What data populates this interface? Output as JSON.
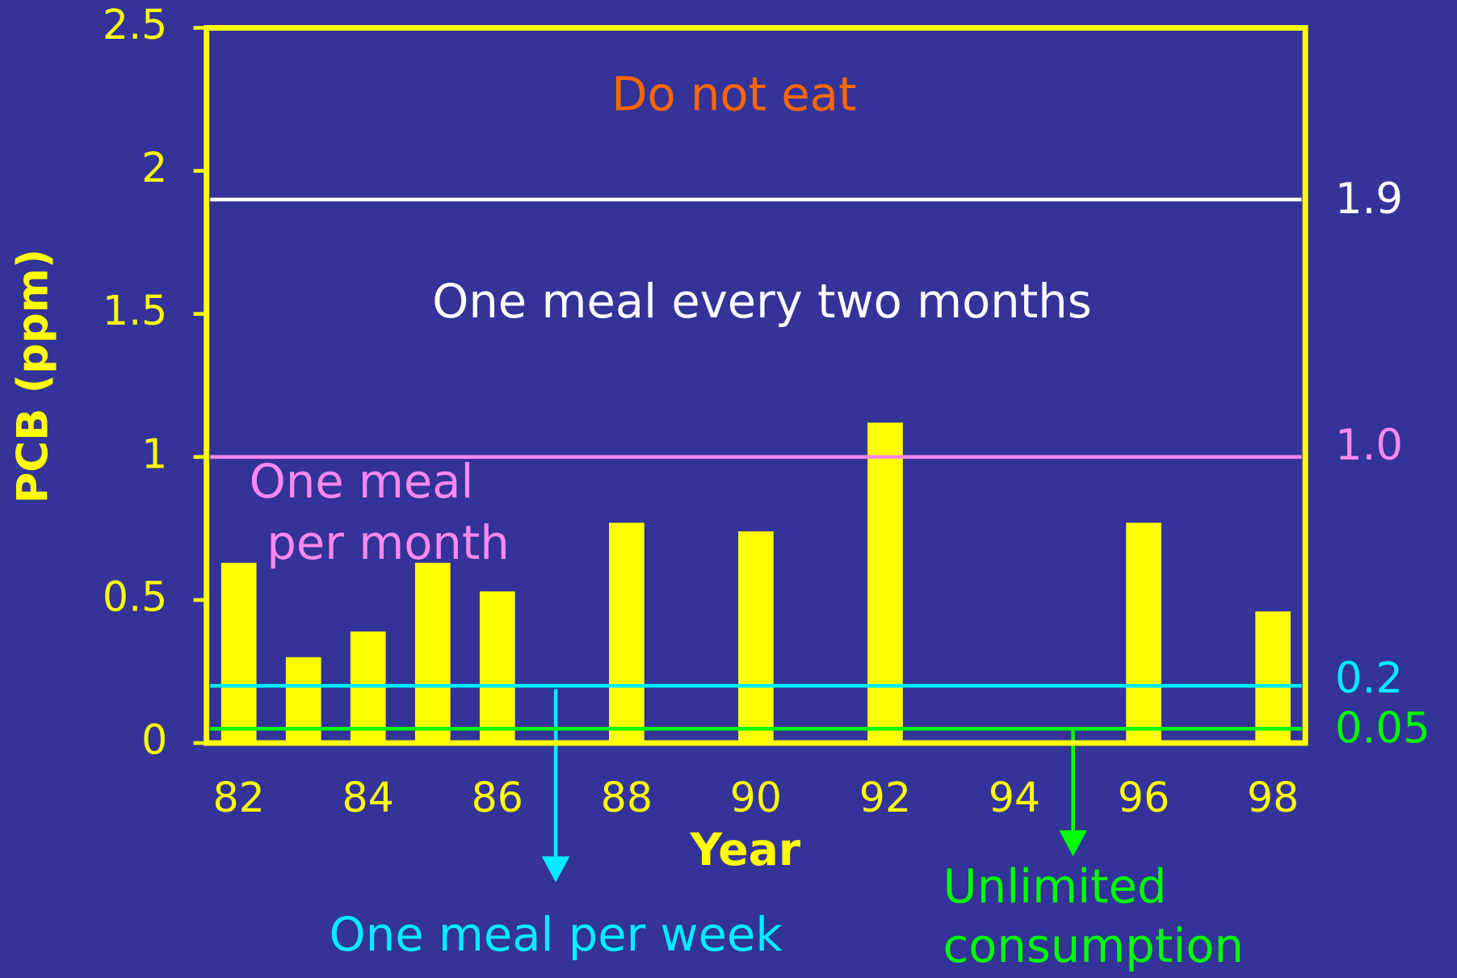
{
  "chart_data": {
    "type": "bar",
    "x_label": "Year",
    "y_label": "PCB (ppm)",
    "x": [
      82,
      83,
      84,
      85,
      86,
      88,
      90,
      92,
      96,
      98
    ],
    "values": [
      0.63,
      0.3,
      0.39,
      0.63,
      0.53,
      0.77,
      0.74,
      1.12,
      0.77,
      0.46
    ],
    "color": "#ffff00",
    "xlim": [
      81.5,
      98.5
    ],
    "xticks": [
      82,
      84,
      86,
      88,
      90,
      92,
      94,
      96,
      98
    ],
    "ylim": [
      0,
      2.5
    ],
    "yticks": [
      0,
      0.5,
      1,
      1.5,
      2,
      2.5
    ],
    "thresholds": [
      {
        "value": 1.9,
        "color": "#ffffff"
      },
      {
        "value": 1,
        "label": "1.0",
        "color": "#ff88ee"
      },
      {
        "value": 0.2,
        "color": "#00eeff"
      },
      {
        "value": 0.05,
        "color": "#00ff00"
      }
    ],
    "annotations": [
      {
        "lines": [
          "Do not eat"
        ],
        "color": "#ff6600"
      },
      {
        "lines": [
          "One meal every two months"
        ],
        "color": "#ffffff"
      },
      {
        "lines": [
          "One meal",
          "per month"
        ],
        "color": "#ff88ee"
      },
      {
        "lines": [
          "One meal per week"
        ],
        "color": "#00eeff"
      },
      {
        "lines": [
          "Unlimited",
          "consumption"
        ],
        "color": "#00ff00"
      }
    ]
  }
}
